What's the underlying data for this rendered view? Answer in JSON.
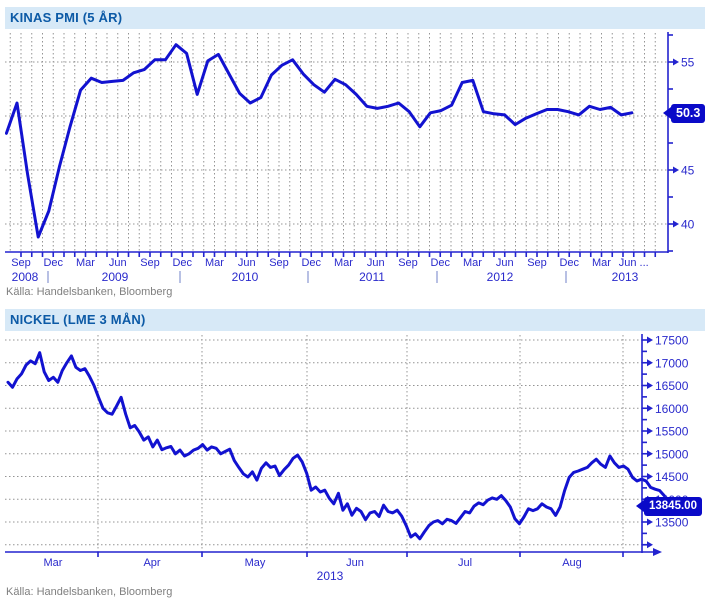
{
  "colors": {
    "line_blue": "#1212d0",
    "axis_blue": "#2323cf",
    "label_blue": "#2a2acc",
    "title_blue": "#0c5aa6",
    "titlebar_bg": "#d7e9f7",
    "grid_gray": "#949494",
    "year_pipe": "#9aa6d9",
    "source_gray": "#7f7f7f",
    "tag_bg": "#0a0ac8",
    "tag_text": "#ffffff"
  },
  "chart_data": [
    {
      "type": "line",
      "title": "KINAS PMI (5 ÅR)",
      "source": "Källa: Handelsbanken, Bloomberg",
      "x_unit": "month",
      "x_start": "2008-08",
      "x_tick_labels": [
        "Sep",
        "Dec",
        "Mar",
        "Jun",
        "Sep",
        "Dec",
        "Mar",
        "Jun",
        "Sep",
        "Dec",
        "Mar",
        "Jun",
        "Sep",
        "Dec",
        "Mar",
        "Jun",
        "Sep",
        "Dec",
        "Mar",
        "Jun ..."
      ],
      "year_labels": [
        "2008",
        "2009",
        "2010",
        "2011",
        "2012",
        "2013"
      ],
      "y_ticks": [
        40,
        45,
        50,
        55
      ],
      "y_minor_ticks": [
        37.5,
        42.5,
        47.5,
        52.5,
        57.5
      ],
      "ylim": [
        37.4,
        57.8
      ],
      "grid": true,
      "legend": false,
      "last_value": 50.3,
      "last_value_label": "50.3",
      "values": [
        48.4,
        51.2,
        44.6,
        38.8,
        41.2,
        45.3,
        49.0,
        52.4,
        53.5,
        53.1,
        53.2,
        53.3,
        54.0,
        54.3,
        55.2,
        55.2,
        56.6,
        55.8,
        52.0,
        55.1,
        55.7,
        53.9,
        52.1,
        51.2,
        51.7,
        53.8,
        54.7,
        55.2,
        53.9,
        52.9,
        52.2,
        53.4,
        52.9,
        52.0,
        50.9,
        50.7,
        50.9,
        51.2,
        50.4,
        49.0,
        50.3,
        50.5,
        51.0,
        53.1,
        53.3,
        50.4,
        50.2,
        50.1,
        49.2,
        49.8,
        50.2,
        50.6,
        50.6,
        50.4,
        50.1,
        50.9,
        50.6,
        50.8,
        50.1,
        50.3
      ]
    },
    {
      "type": "line",
      "title": "NICKEL (LME 3 MÅN)",
      "source": "Källa: Handelsbanken, Bloomberg",
      "x_unit": "trading-day",
      "x_range": "Mar 2013 - Aug 2013",
      "x_tick_labels": [
        "Mar",
        "Apr",
        "May",
        "Jun",
        "Jul",
        "Aug"
      ],
      "year_labels": [
        "2013"
      ],
      "y_ticks": [
        13500,
        14000,
        14500,
        15000,
        15500,
        16000,
        16500,
        17000,
        17500
      ],
      "y_minor_ticks": [
        13000,
        13250,
        13750,
        14250,
        14750,
        15250,
        15750,
        16250,
        16750,
        17250
      ],
      "ylim": [
        12950,
        17650
      ],
      "grid": true,
      "legend": false,
      "last_value": 13845.0,
      "last_value_label": "13845.00",
      "values": [
        16570,
        16460,
        16650,
        16760,
        16950,
        17040,
        16980,
        17220,
        16800,
        16610,
        16680,
        16570,
        16830,
        17000,
        17150,
        16900,
        16830,
        16870,
        16700,
        16500,
        16240,
        16000,
        15900,
        15870,
        16050,
        16240,
        15870,
        15570,
        15620,
        15480,
        15300,
        15370,
        15150,
        15300,
        15090,
        15130,
        15160,
        15000,
        15080,
        14950,
        15000,
        15080,
        15120,
        15200,
        15080,
        15150,
        15120,
        15000,
        15050,
        15100,
        14850,
        14700,
        14560,
        14490,
        14600,
        14420,
        14680,
        14800,
        14700,
        14730,
        14520,
        14650,
        14750,
        14900,
        14970,
        14820,
        14570,
        14200,
        14270,
        14160,
        14200,
        14020,
        13900,
        14130,
        13760,
        13900,
        13650,
        13800,
        13730,
        13550,
        13700,
        13730,
        13620,
        13870,
        13730,
        13700,
        13760,
        13630,
        13420,
        13170,
        13240,
        13130,
        13280,
        13420,
        13500,
        13530,
        13460,
        13560,
        13530,
        13470,
        13600,
        13730,
        13700,
        13850,
        13920,
        13880,
        13980,
        14030,
        14000,
        14080,
        13970,
        13830,
        13570,
        13460,
        13610,
        13790,
        13750,
        13790,
        13900,
        13830,
        13790,
        13645,
        13830,
        14190,
        14480,
        14590,
        14620,
        14660,
        14700,
        14800,
        14880,
        14770,
        14700,
        14950,
        14800,
        14700,
        14730,
        14660,
        14480,
        14400,
        14440,
        14400,
        14260,
        14220,
        14190,
        14080,
        13970,
        13845
      ]
    }
  ]
}
